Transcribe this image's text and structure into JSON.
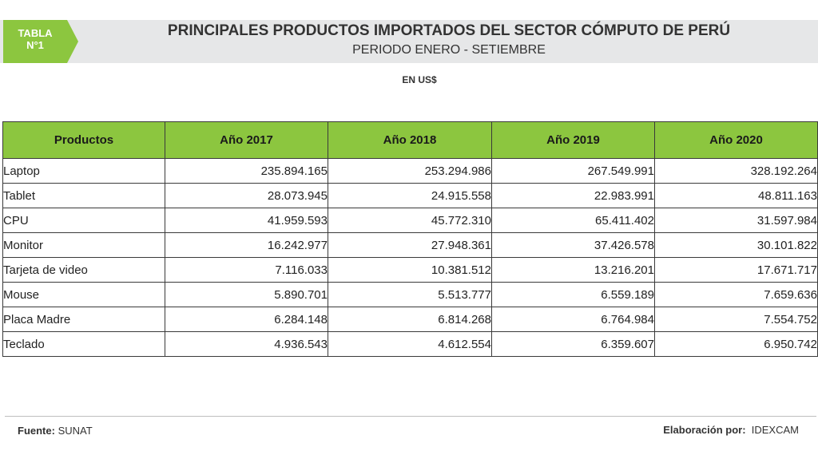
{
  "header": {
    "tag_line1": "TABLA",
    "tag_line2": "N°1",
    "title": "PRINCIPALES PRODUCTOS IMPORTADOS DEL SECTOR CÓMPUTO DE PERÚ",
    "subtitle": "PERIODO ENERO - SETIEMBRE",
    "units": "EN US$"
  },
  "table": {
    "columns": [
      "Productos",
      "Año 2017",
      "Año 2018",
      "Año 2019",
      "Año 2020"
    ],
    "rows": [
      [
        "Laptop",
        "235.894.165",
        "253.294.986",
        "267.549.991",
        "328.192.264"
      ],
      [
        "Tablet",
        "28.073.945",
        "24.915.558",
        "22.983.991",
        "48.811.163"
      ],
      [
        "CPU",
        "41.959.593",
        "45.772.310",
        "65.411.402",
        "31.597.984"
      ],
      [
        "Monitor",
        "16.242.977",
        "27.948.361",
        "37.426.578",
        "30.101.822"
      ],
      [
        "Tarjeta de video",
        "7.116.033",
        "10.381.512",
        "13.216.201",
        "17.671.717"
      ],
      [
        "Mouse",
        "5.890.701",
        "5.513.777",
        "6.559.189",
        "7.659.636"
      ],
      [
        "Placa Madre",
        "6.284.148",
        "6.814.268",
        "6.764.984",
        "7.554.752"
      ],
      [
        "Teclado",
        "4.936.543",
        "4.612.554",
        "6.359.607",
        "6.950.742"
      ]
    ]
  },
  "footer": {
    "source_label": "Fuente:",
    "source_value": "SUNAT",
    "credit_label": "Elaboración por:",
    "credit_value": "IDEXCAM"
  },
  "colors": {
    "accent_green": "#8cc63f",
    "header_band": "#e6e7e8"
  }
}
